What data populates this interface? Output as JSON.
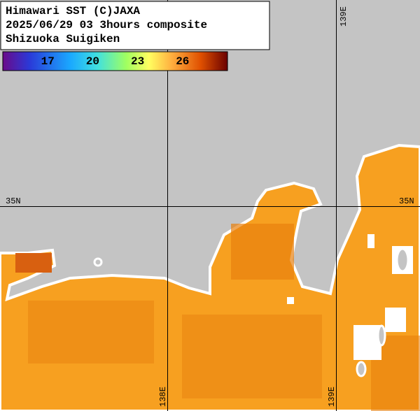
{
  "header": {
    "lines": [
      "Himawari SST (C)JAXA",
      "2025/06/29 03 3hours composite",
      "Shizuoka Suigiken"
    ]
  },
  "colorbar": {
    "lim": [
      14,
      29
    ],
    "ticks": [
      17,
      20,
      23,
      26
    ]
  },
  "grid_labels": {
    "lat_left": "35N",
    "lat_right": "35N",
    "lon_bottom_1": "138E",
    "lon_bottom_2": "139E",
    "lon_top": "139E"
  }
}
